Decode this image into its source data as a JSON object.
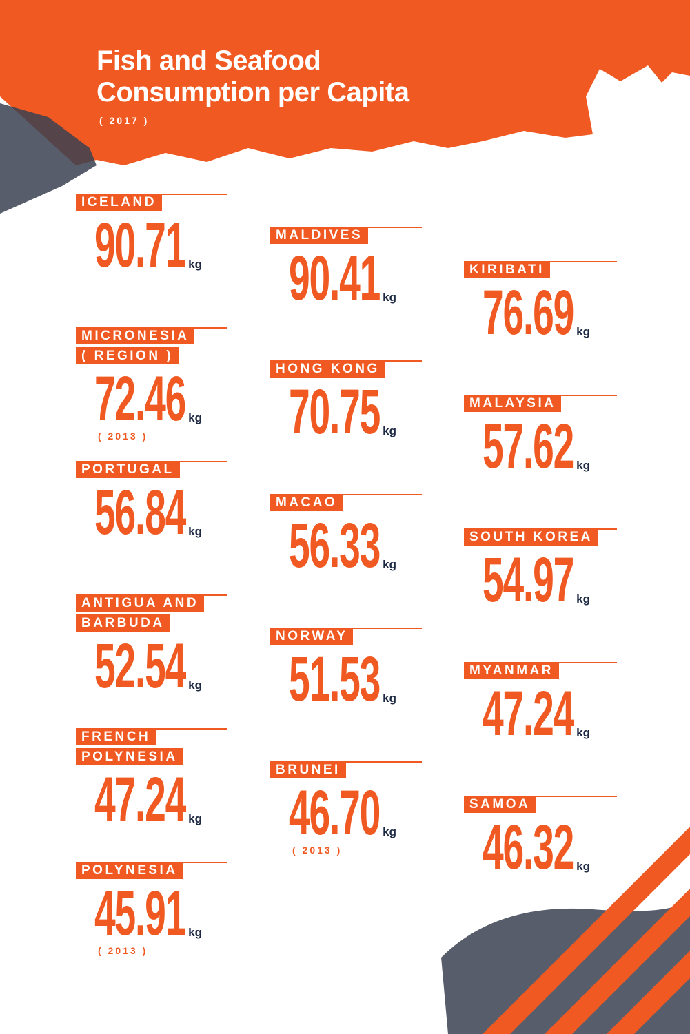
{
  "header": {
    "title_lines": [
      "Fish and Seafood",
      "Consumption per Capita"
    ],
    "year": "( 2017 )"
  },
  "columns": [
    {
      "items": [
        {
          "label_lines": [
            "ICELAND"
          ],
          "value": "90.71",
          "unit": "kg"
        },
        {
          "label_lines": [
            "MICRONESIA",
            "( REGION )"
          ],
          "value": "72.46",
          "unit": "kg",
          "note": "( 2013 )"
        },
        {
          "label_lines": [
            "PORTUGAL"
          ],
          "value": "56.84",
          "unit": "kg"
        },
        {
          "label_lines": [
            "ANTIGUA AND",
            "BARBUDA"
          ],
          "value": "52.54",
          "unit": "kg"
        },
        {
          "label_lines": [
            "FRENCH",
            "POLYNESIA"
          ],
          "value": "47.24",
          "unit": "kg"
        },
        {
          "label_lines": [
            "POLYNESIA"
          ],
          "value": "45.91",
          "unit": "kg",
          "note": "( 2013 )"
        }
      ]
    },
    {
      "items": [
        {
          "label_lines": [
            "MALDIVES"
          ],
          "value": "90.41",
          "unit": "kg"
        },
        {
          "label_lines": [
            "HONG KONG"
          ],
          "value": "70.75",
          "unit": "kg"
        },
        {
          "label_lines": [
            "MACAO"
          ],
          "value": "56.33",
          "unit": "kg"
        },
        {
          "label_lines": [
            "NORWAY"
          ],
          "value": "51.53",
          "unit": "kg"
        },
        {
          "label_lines": [
            "BRUNEI"
          ],
          "value": "46.70",
          "unit": "kg",
          "note": "( 2013 )"
        }
      ]
    },
    {
      "items": [
        {
          "label_lines": [
            "KIRIBATI"
          ],
          "value": "76.69",
          "unit": "kg"
        },
        {
          "label_lines": [
            "MALAYSIA"
          ],
          "value": "57.62",
          "unit": "kg"
        },
        {
          "label_lines": [
            "SOUTH KOREA"
          ],
          "value": "54.97",
          "unit": "kg"
        },
        {
          "label_lines": [
            "MYANMAR"
          ],
          "value": "47.24",
          "unit": "kg"
        },
        {
          "label_lines": [
            "SAMOA"
          ],
          "value": "46.32",
          "unit": "kg"
        }
      ]
    }
  ]
}
